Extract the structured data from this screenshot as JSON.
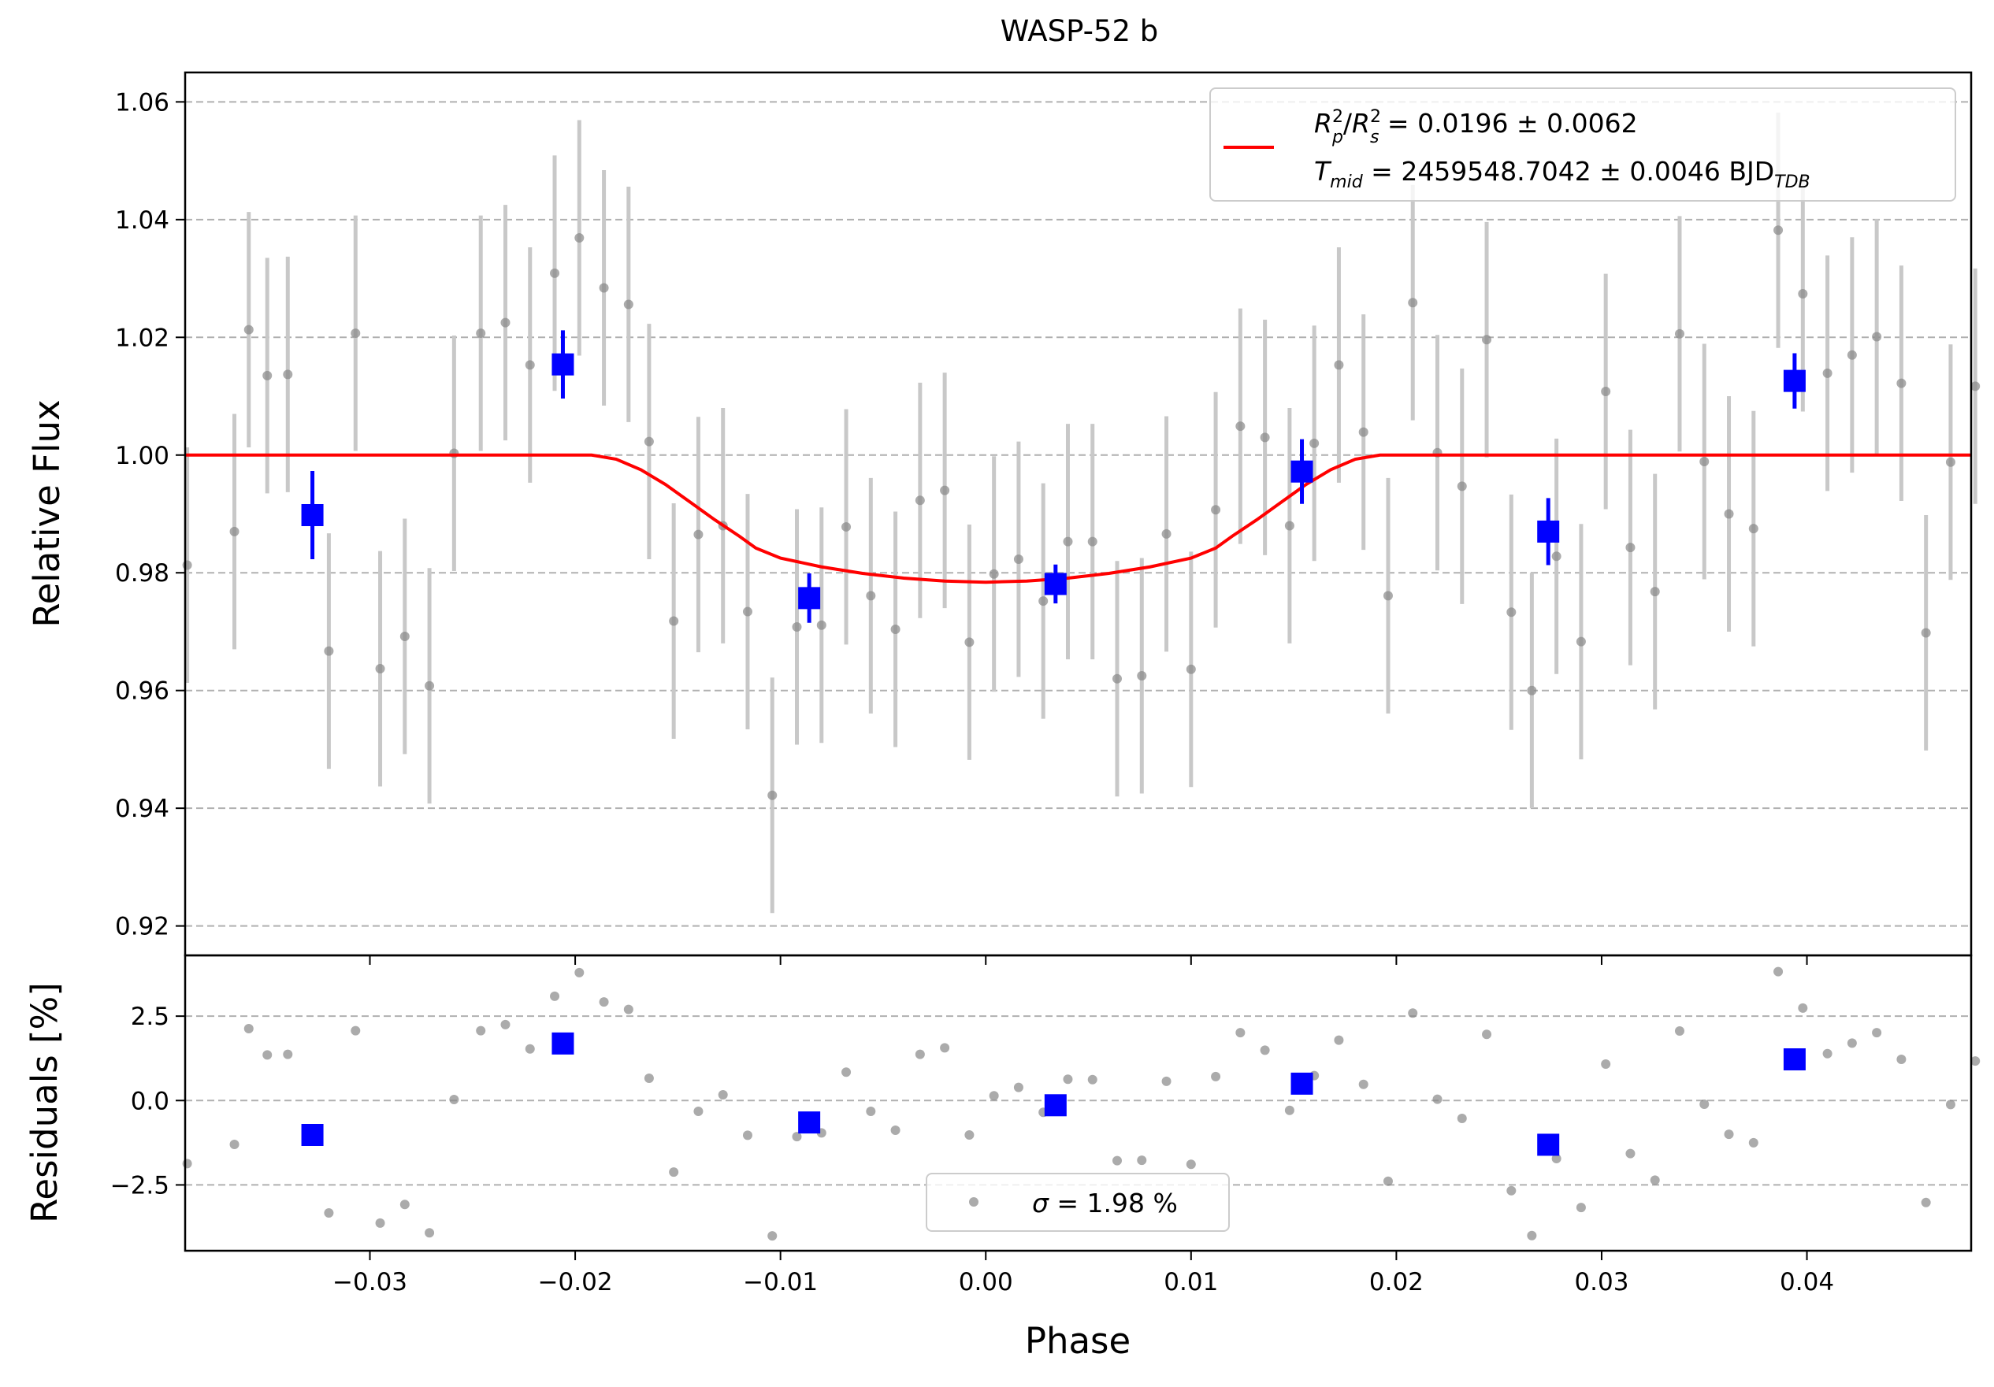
{
  "chart_data": [
    {
      "panel": "top",
      "type": "scatter",
      "title": "WASP-52 b",
      "xlabel": "",
      "ylabel": "Relative Flux",
      "xlim": [
        -0.039,
        0.048
      ],
      "ylim": [
        0.915,
        1.065
      ],
      "yticks": [
        0.92,
        0.94,
        0.96,
        0.98,
        1.0,
        1.02,
        1.04,
        1.06
      ],
      "ytick_labels": [
        "0.92",
        "0.94",
        "0.96",
        "0.98",
        "1.00",
        "1.02",
        "1.04",
        "1.06"
      ],
      "grid": "horizontal dashed",
      "legend_position": "top-right",
      "legend": {
        "line_color": "#ff0000",
        "line1": {
          "r_base": "R",
          "r_sup": "2",
          "r_sub": "p",
          "slash": "/",
          "s_sup": "2",
          "s_sub": "s",
          "value": " = 0.0196 ± 0.0062"
        },
        "line2": {
          "t_base": "T",
          "t_sub": "mid",
          "value": " = 2459548.7042 ± 0.0046 BJD",
          "unit_sub": "TDB"
        }
      },
      "series": [
        {
          "kind": "raw",
          "color": "#888888",
          "errbar_color": "#c8c8c8",
          "x": [
            -0.0389,
            -0.0366,
            -0.0359,
            -0.035,
            -0.034,
            -0.032,
            -0.0307,
            -0.0295,
            -0.0283,
            -0.0271,
            -0.0259,
            -0.0246,
            -0.0234,
            -0.0222,
            -0.021,
            -0.0198,
            -0.0186,
            -0.0174,
            -0.0164,
            -0.0152,
            -0.014,
            -0.0128,
            -0.0116,
            -0.0104,
            -0.0092,
            -0.008,
            -0.0068,
            -0.0056,
            -0.0044,
            -0.0032,
            -0.002,
            -0.0008,
            0.0004,
            0.0016,
            0.0028,
            0.004,
            0.0052,
            0.0064,
            0.0076,
            0.0088,
            0.01,
            0.0112,
            0.0124,
            0.0136,
            0.0148,
            0.016,
            0.0172,
            0.0184,
            0.0196,
            0.0208,
            0.022,
            0.0232,
            0.0244,
            0.0256,
            0.0266,
            0.0278,
            0.029,
            0.0302,
            0.0314,
            0.0326,
            0.0338,
            0.035,
            0.0362,
            0.0374,
            0.0386,
            0.0398,
            0.041,
            0.0422,
            0.0434,
            0.0446,
            0.0458,
            0.047,
            0.0482
          ],
          "y": [
            0.9813,
            0.987,
            1.0213,
            1.0135,
            1.0137,
            0.9667,
            1.0207,
            0.9637,
            0.9692,
            0.9608,
            1.0003,
            1.0207,
            1.0225,
            1.0153,
            1.0309,
            1.0369,
            1.0284,
            1.0256,
            1.0023,
            0.9718,
            0.9865,
            0.988,
            0.9734,
            0.9422,
            0.9708,
            0.9711,
            0.9878,
            0.9761,
            0.9704,
            0.9923,
            0.994,
            0.9682,
            0.9798,
            0.9823,
            0.9752,
            0.9853,
            0.9853,
            0.962,
            0.9625,
            0.9866,
            0.9636,
            0.9907,
            1.0049,
            1.003,
            0.988,
            1.002,
            1.0153,
            1.0039,
            0.9761,
            1.0259,
            1.0004,
            0.9947,
            1.0196,
            0.9733,
            0.96,
            0.9828,
            0.9683,
            1.0108,
            0.9843,
            0.9768,
            1.0206,
            0.9989,
            0.99,
            0.9875,
            1.0382,
            1.0274,
            1.0139,
            1.017,
            1.0201,
            1.0122,
            0.9698,
            0.9988,
            1.0117
          ],
          "yerr": 0.02
        },
        {
          "kind": "binned",
          "color": "#0000ff",
          "x": [
            -0.0328,
            -0.0206,
            -0.0086,
            0.0034,
            0.0154,
            0.0274,
            0.0394
          ],
          "y": [
            0.9898,
            1.0154,
            0.9757,
            0.9781,
            0.9972,
            0.987,
            1.0126
          ],
          "yerr": [
            0.0075,
            0.0058,
            0.0042,
            0.0033,
            0.0055,
            0.0057,
            0.0047
          ]
        },
        {
          "kind": "model",
          "color": "#ff0000",
          "x": [
            -0.039,
            -0.0192,
            -0.018,
            -0.0168,
            -0.0156,
            -0.0144,
            -0.0132,
            -0.012,
            -0.0112,
            -0.01,
            -0.008,
            -0.006,
            -0.004,
            -0.002,
            0.0,
            0.002,
            0.004,
            0.006,
            0.008,
            0.01,
            0.0112,
            0.012,
            0.0132,
            0.0144,
            0.0156,
            0.0168,
            0.018,
            0.0192,
            0.048
          ],
          "y": [
            1.0,
            1.0,
            0.9993,
            0.9975,
            0.995,
            0.992,
            0.989,
            0.9862,
            0.9842,
            0.9825,
            0.981,
            0.9799,
            0.9791,
            0.9786,
            0.9784,
            0.9786,
            0.9791,
            0.9799,
            0.981,
            0.9825,
            0.9842,
            0.9862,
            0.989,
            0.992,
            0.995,
            0.9975,
            0.9993,
            1.0,
            1.0
          ]
        }
      ]
    },
    {
      "panel": "bottom",
      "type": "scatter",
      "xlabel": "Phase",
      "ylabel": "Residuals [%]",
      "xlim": [
        -0.039,
        0.048
      ],
      "ylim": [
        -4.45,
        4.3
      ],
      "xticks": [
        -0.03,
        -0.02,
        -0.01,
        0.0,
        0.01,
        0.02,
        0.03,
        0.04
      ],
      "xtick_labels": [
        "−0.03",
        "−0.02",
        "−0.01",
        "0.00",
        "0.01",
        "0.02",
        "0.03",
        "0.04"
      ],
      "yticks": [
        -2.5,
        0.0,
        2.5
      ],
      "ytick_labels": [
        "−2.5",
        "0.0",
        "2.5"
      ],
      "grid": "horizontal dashed",
      "legend_position": "bottom-center",
      "legend": {
        "sigma_label": "σ",
        "value": " = 1.98 %"
      },
      "series": [
        {
          "kind": "raw_residuals",
          "color": "#888888",
          "x": [
            -0.0389,
            -0.0366,
            -0.0359,
            -0.035,
            -0.034,
            -0.032,
            -0.0307,
            -0.0295,
            -0.0283,
            -0.0271,
            -0.0259,
            -0.0246,
            -0.0234,
            -0.0222,
            -0.021,
            -0.0198,
            -0.0186,
            -0.0174,
            -0.0164,
            -0.0152,
            -0.014,
            -0.0128,
            -0.0116,
            -0.0104,
            -0.0092,
            -0.008,
            -0.0068,
            -0.0056,
            -0.0044,
            -0.0032,
            -0.002,
            -0.0008,
            0.0004,
            0.0016,
            0.0028,
            0.004,
            0.0052,
            0.0064,
            0.0076,
            0.0088,
            0.01,
            0.0112,
            0.0124,
            0.0136,
            0.0148,
            0.016,
            0.0172,
            0.0184,
            0.0196,
            0.0208,
            0.022,
            0.0232,
            0.0244,
            0.0256,
            0.0266,
            0.0278,
            0.029,
            0.0302,
            0.0314,
            0.0326,
            0.0338,
            0.035,
            0.0362,
            0.0374,
            0.0386,
            0.0398,
            0.041,
            0.0422,
            0.0434,
            0.0446,
            0.0458,
            0.047,
            0.0482
          ],
          "y": [
            -1.87,
            -1.3,
            2.13,
            1.35,
            1.37,
            -3.33,
            2.07,
            -3.63,
            -3.08,
            -3.92,
            0.03,
            2.07,
            2.25,
            1.53,
            3.09,
            3.79,
            2.92,
            2.7,
            0.66,
            -2.12,
            -0.32,
            0.17,
            -1.03,
            -4.01,
            -1.07,
            -0.96,
            0.84,
            -0.32,
            -0.88,
            1.37,
            1.56,
            -1.02,
            0.14,
            0.39,
            -0.35,
            0.63,
            0.62,
            -1.78,
            -1.77,
            0.57,
            -1.89,
            0.71,
            2.01,
            1.49,
            -0.29,
            0.74,
            1.79,
            0.48,
            -2.39,
            2.59,
            0.04,
            -0.53,
            1.96,
            -2.67,
            -4.0,
            -1.72,
            -3.17,
            1.08,
            -1.57,
            -2.36,
            2.06,
            -0.11,
            -1.0,
            -1.25,
            3.82,
            2.74,
            1.39,
            1.7,
            2.01,
            1.22,
            -3.02,
            -0.12,
            1.17
          ]
        },
        {
          "kind": "binned_residuals",
          "color": "#0000ff",
          "x": [
            -0.0328,
            -0.0206,
            -0.0086,
            0.0034,
            0.0154,
            0.0274,
            0.0394
          ],
          "y": [
            -1.02,
            1.69,
            -0.65,
            -0.14,
            0.5,
            -1.31,
            1.22
          ]
        }
      ]
    }
  ]
}
